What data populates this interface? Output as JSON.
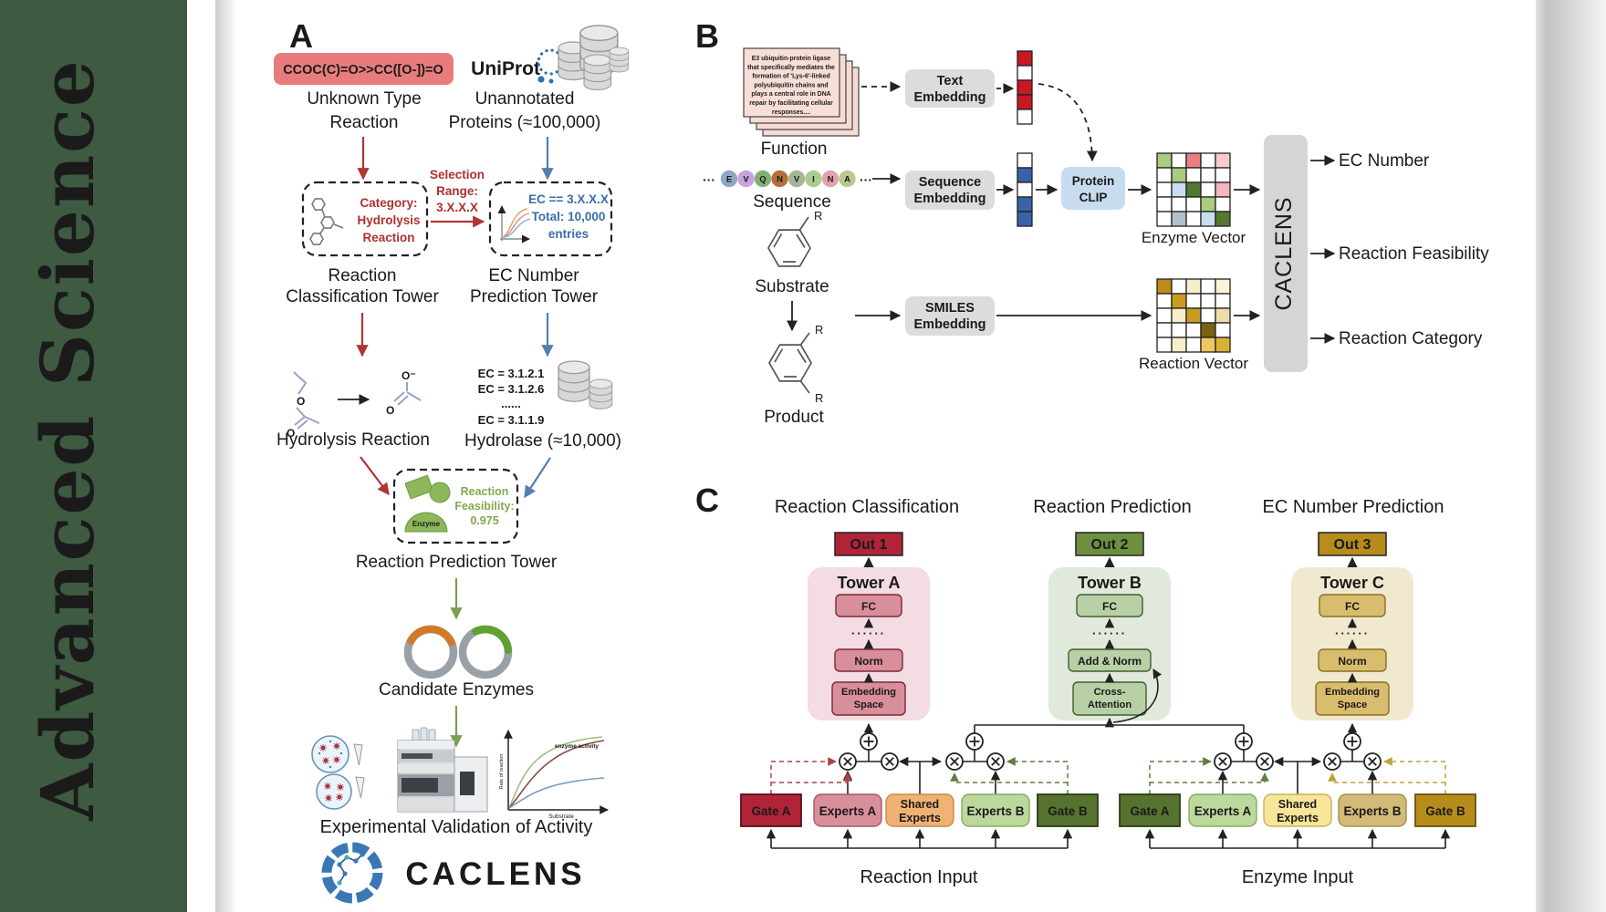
{
  "journal": {
    "name": "Advanced  Science"
  },
  "colors": {
    "journal_green": "#3e5a41",
    "smiles_box": "#e87c7c",
    "red_flow": "#b23535",
    "blue_flow": "#527fae",
    "green_flow": "#7a9e52",
    "out1": "#b02438",
    "out2": "#6d9040",
    "out3": "#b68c1c",
    "tower_a_bg": "#f3dce2",
    "tower_b_bg": "#e0e9db",
    "tower_c_bg": "#f1e9cf"
  },
  "panelA": {
    "label": "A",
    "smiles": "CCOC(C)=O>>CC([O-])=O",
    "unknown_reaction_l1": "Unknown Type",
    "unknown_reaction_l2": "Reaction",
    "uniprot": "UniProt",
    "unannotated_l1": "Unannotated",
    "unannotated_l2": "Proteins (≈100,000)",
    "category_l1": "Category:",
    "category_l2": "Hydrolysis",
    "category_l3": "Reaction",
    "selection_l1": "Selection",
    "selection_l2": "Range:",
    "selection_l3": "3.X.X.X",
    "ec_box_l1": "EC == 3.X.X.X",
    "ec_box_l2": "Total: 10,000",
    "ec_box_l3": "entries",
    "classification_tower_l1": "Reaction",
    "classification_tower_l2": "Classification Tower",
    "ec_tower_l1": "EC Number",
    "ec_tower_l2": "Prediction Tower",
    "hydrolysis_reaction": "Hydrolysis Reaction",
    "ec_item_1": "EC = 3.1.2.1",
    "ec_item_2": "EC = 3.1.2.6",
    "ec_item_3": "......",
    "ec_item_4": "EC = 3.1.1.9",
    "hydrolase": "Hydrolase (≈10,000)",
    "enzyme_badge": "Enzyme",
    "feasibility_l1": "Reaction",
    "feasibility_l2": "Feasibility:",
    "feasibility_l3": "0.975",
    "prediction_tower": "Reaction Prediction Tower",
    "candidate_enzymes": "Candidate Enzymes",
    "activity_plot": {
      "curve_label": "enzyme activity",
      "ylabel": "Rate of reaction",
      "xlabel": "Substrate"
    },
    "validation": "Experimental Validation of Activity",
    "brand": "CACLENS"
  },
  "panelB": {
    "label": "B",
    "card_lines": [
      "E3 ubiquitin-protein ligase",
      "that specifically mediates the",
      "formation of 'Lys-6'-linked",
      "polyubiquitin chains and",
      "plays a central role in DNA",
      "repair by facilitating cellular",
      "responses...."
    ],
    "function": "Function",
    "ellipsis": "···",
    "sequence_letters": [
      "E",
      "V",
      "Q",
      "N",
      "V",
      "I",
      "N",
      "A"
    ],
    "sequence_colors": [
      "#8fa7c4",
      "#c9a3e0",
      "#85b075",
      "#b5703a",
      "#a8b49a",
      "#a9cc90",
      "#e0a3ad",
      "#b9c98f"
    ],
    "sequence": "Sequence",
    "substrate": "Substrate",
    "product": "Product",
    "r_label": "R",
    "text_embedding_l1": "Text",
    "text_embedding_l2": "Embedding",
    "sequence_embedding_l1": "Sequence",
    "sequence_embedding_l2": "Embedding",
    "smiles_embedding_l1": "SMILES",
    "smiles_embedding_l2": "Embedding",
    "protein_clip_l1": "Protein",
    "protein_clip_l2": "CLIP",
    "text_vector_cells": [
      [
        "#c81822"
      ],
      [
        "#ffffff"
      ],
      [
        "#c81822"
      ],
      [
        "#c81822"
      ],
      [
        "#ffffff"
      ]
    ],
    "sequence_vector_cells": [
      [
        "#ffffff"
      ],
      [
        "#3a62a8"
      ],
      [
        "#ffffff"
      ],
      [
        "#3a62a8"
      ],
      [
        "#3a62a8"
      ]
    ],
    "enzyme_vector_cells": [
      [
        "#a9cc80",
        "#ffffff",
        "#e88080",
        "#ffffff",
        "#f6ccd2"
      ],
      [
        "#ffffff",
        "#a9cc80",
        "#ffffff",
        "#ffffff",
        "#ffffff"
      ],
      [
        "#ffffff",
        "#c9dcf0",
        "#4e7a30",
        "#ffffff",
        "#f2b6bd"
      ],
      [
        "#ffffff",
        "#ffffff",
        "#ffffff",
        "#a9cc80",
        "#ffffff"
      ],
      [
        "#ffffff",
        "#b3bfce",
        "#ffffff",
        "#c9dcf0",
        "#55782e"
      ]
    ],
    "reaction_vector_cells": [
      [
        "#c08a18",
        "#ffffff",
        "#f6eecb",
        "#ffffff",
        "#faf3da"
      ],
      [
        "#ffffff",
        "#c99b20",
        "#ffffff",
        "#ffffff",
        "#ffffff"
      ],
      [
        "#ffffff",
        "#f6eecb",
        "#c99b20",
        "#ffffff",
        "#eedcaa"
      ],
      [
        "#ffffff",
        "#ffffff",
        "#ffffff",
        "#7a6212",
        "#ffffff"
      ],
      [
        "#ffffff",
        "#f6eecb",
        "#ffffff",
        "#eec75e",
        "#d9b233"
      ]
    ],
    "enzyme_vector": "Enzyme Vector",
    "reaction_vector": "Reaction Vector",
    "caclens": "CACLENS",
    "output_1": "EC Number",
    "output_2": "Reaction Feasibility",
    "output_3": "Reaction Category"
  },
  "panelC": {
    "label": "C",
    "heading_1": "Reaction Classification",
    "heading_2": "Reaction Prediction",
    "heading_3": "EC Number Prediction",
    "out_1": "Out 1",
    "out_2": "Out 2",
    "out_3": "Out 3",
    "tower_a": {
      "title": "Tower A",
      "fc": "FC",
      "dots": "······",
      "norm": "Norm",
      "emb_l1": "Embedding",
      "emb_l2": "Space"
    },
    "tower_b": {
      "title": "Tower B",
      "fc": "FC",
      "dots": "······",
      "add_norm": "Add & Norm",
      "cross_l1": "Cross-",
      "cross_l2": "Attention"
    },
    "tower_c": {
      "title": "Tower C",
      "fc": "FC",
      "dots": "······",
      "norm": "Norm",
      "emb_l1": "Embedding",
      "emb_l2": "Space"
    },
    "moe_reaction": {
      "gate_a": "Gate A",
      "experts_a": "Experts A",
      "shared_l1": "Shared",
      "shared_l2": "Experts",
      "experts_b": "Experts B",
      "gate_b": "Gate B",
      "input": "Reaction Input"
    },
    "moe_enzyme": {
      "gate_a": "Gate A",
      "experts_a": "Experts A",
      "shared_l1": "Shared",
      "shared_l2": "Experts",
      "experts_b": "Experts B",
      "gate_b": "Gate B",
      "input": "Enzyme Input"
    }
  }
}
